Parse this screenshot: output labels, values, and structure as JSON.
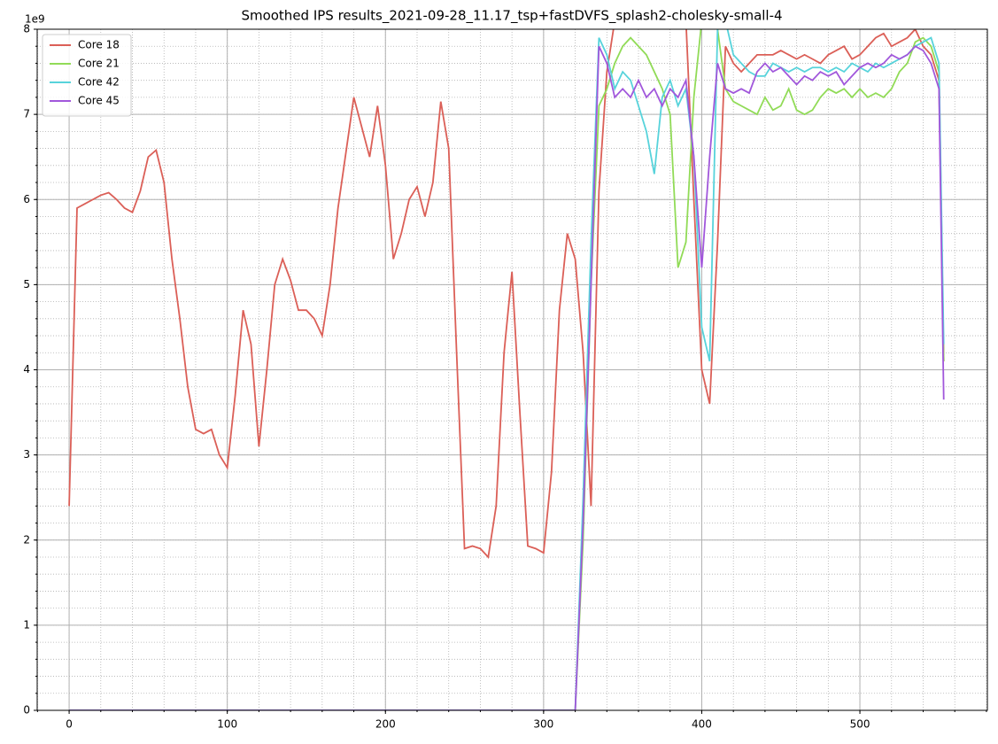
{
  "chart_data": {
    "type": "line",
    "title": "Smoothed IPS results_2021-09-28_11.17_tsp+fastDVFS_splash2-cholesky-small-4",
    "y_offset_label": "1e9",
    "x": [
      0,
      5,
      10,
      15,
      20,
      25,
      30,
      35,
      40,
      45,
      50,
      55,
      60,
      65,
      70,
      75,
      80,
      85,
      90,
      95,
      100,
      105,
      110,
      115,
      120,
      125,
      130,
      135,
      140,
      145,
      150,
      155,
      160,
      165,
      170,
      175,
      180,
      185,
      190,
      195,
      200,
      205,
      210,
      215,
      220,
      225,
      230,
      235,
      240,
      245,
      250,
      255,
      260,
      265,
      270,
      275,
      280,
      285,
      290,
      295,
      300,
      305,
      310,
      315,
      320,
      325,
      330,
      335,
      340,
      345,
      350,
      355,
      360,
      365,
      370,
      375,
      380,
      385,
      390,
      395,
      400,
      405,
      410,
      415,
      420,
      425,
      430,
      435,
      440,
      445,
      450,
      455,
      460,
      465,
      470,
      475,
      480,
      485,
      490,
      495,
      500,
      505,
      510,
      515,
      520,
      525,
      530,
      535,
      540,
      545,
      550,
      553
    ],
    "series": [
      {
        "name": "Core 18",
        "color": "#db5f57",
        "values": [
          2.4,
          5.9,
          5.95,
          6.0,
          6.05,
          6.08,
          6.0,
          5.9,
          5.85,
          6.1,
          6.5,
          6.58,
          6.2,
          5.3,
          4.6,
          3.8,
          3.3,
          3.25,
          3.3,
          3.0,
          2.85,
          3.7,
          4.7,
          4.3,
          3.1,
          4.0,
          5.0,
          5.3,
          5.05,
          4.7,
          4.7,
          4.6,
          4.4,
          5.0,
          5.9,
          6.55,
          7.2,
          6.85,
          6.5,
          7.1,
          6.4,
          5.3,
          5.6,
          6.0,
          6.15,
          5.8,
          6.2,
          7.15,
          6.6,
          4.2,
          1.9,
          1.93,
          1.9,
          1.8,
          2.4,
          4.2,
          5.15,
          3.5,
          1.93,
          1.9,
          1.85,
          2.8,
          4.7,
          5.6,
          5.3,
          4.2,
          2.4,
          6.1,
          7.5,
          8.1,
          8.1,
          8.1,
          8.1,
          8.1,
          8.1,
          8.1,
          8.1,
          8.1,
          8.1,
          6.0,
          4.0,
          3.6,
          5.5,
          7.8,
          7.6,
          7.5,
          7.6,
          7.7,
          7.7,
          7.7,
          7.75,
          7.7,
          7.65,
          7.7,
          7.65,
          7.6,
          7.7,
          7.75,
          7.8,
          7.65,
          7.7,
          7.8,
          7.9,
          7.95,
          7.8,
          7.85,
          7.9,
          8.0,
          7.8,
          7.7,
          7.4,
          4.1
        ]
      },
      {
        "name": "Core 21",
        "color": "#91db57",
        "values": [
          0,
          0,
          0,
          0,
          0,
          0,
          0,
          0,
          0,
          0,
          0,
          0,
          0,
          0,
          0,
          0,
          0,
          0,
          0,
          0,
          0,
          0,
          0,
          0,
          0,
          0,
          0,
          0,
          0,
          0,
          0,
          0,
          0,
          0,
          0,
          0,
          0,
          0,
          0,
          0,
          0,
          0,
          0,
          0,
          0,
          0,
          0,
          0,
          0,
          0,
          0,
          0,
          0,
          0,
          0,
          0,
          0,
          0,
          0,
          0,
          0,
          0,
          0,
          0,
          0,
          2.0,
          5.0,
          7.1,
          7.3,
          7.6,
          7.8,
          7.9,
          7.8,
          7.7,
          7.5,
          7.3,
          7.0,
          5.2,
          5.5,
          7.2,
          8.1,
          8.1,
          8.0,
          7.3,
          7.15,
          7.1,
          7.05,
          7.0,
          7.2,
          7.05,
          7.1,
          7.3,
          7.05,
          7.0,
          7.05,
          7.2,
          7.3,
          7.25,
          7.3,
          7.2,
          7.3,
          7.2,
          7.25,
          7.2,
          7.3,
          7.5,
          7.6,
          7.85,
          7.9,
          7.8,
          7.5,
          4.1
        ]
      },
      {
        "name": "Core 42",
        "color": "#57d3db",
        "values": [
          0,
          0,
          0,
          0,
          0,
          0,
          0,
          0,
          0,
          0,
          0,
          0,
          0,
          0,
          0,
          0,
          0,
          0,
          0,
          0,
          0,
          0,
          0,
          0,
          0,
          0,
          0,
          0,
          0,
          0,
          0,
          0,
          0,
          0,
          0,
          0,
          0,
          0,
          0,
          0,
          0,
          0,
          0,
          0,
          0,
          0,
          0,
          0,
          0,
          0,
          0,
          0,
          0,
          0,
          0,
          0,
          0,
          0,
          0,
          0,
          0,
          0,
          0,
          0,
          0,
          2.5,
          5.5,
          7.9,
          7.7,
          7.3,
          7.5,
          7.4,
          7.1,
          6.8,
          6.3,
          7.2,
          7.4,
          7.1,
          7.3,
          6.5,
          4.5,
          4.1,
          8.0,
          8.1,
          7.7,
          7.6,
          7.5,
          7.45,
          7.45,
          7.6,
          7.55,
          7.5,
          7.55,
          7.5,
          7.55,
          7.55,
          7.5,
          7.55,
          7.5,
          7.6,
          7.55,
          7.5,
          7.6,
          7.55,
          7.6,
          7.65,
          7.7,
          7.8,
          7.85,
          7.9,
          7.6,
          4.3
        ]
      },
      {
        "name": "Core 45",
        "color": "#a157db",
        "values": [
          0,
          0,
          0,
          0,
          0,
          0,
          0,
          0,
          0,
          0,
          0,
          0,
          0,
          0,
          0,
          0,
          0,
          0,
          0,
          0,
          0,
          0,
          0,
          0,
          0,
          0,
          0,
          0,
          0,
          0,
          0,
          0,
          0,
          0,
          0,
          0,
          0,
          0,
          0,
          0,
          0,
          0,
          0,
          0,
          0,
          0,
          0,
          0,
          0,
          0,
          0,
          0,
          0,
          0,
          0,
          0,
          0,
          0,
          0,
          0,
          0,
          0,
          0,
          0,
          0,
          2.2,
          5.0,
          7.8,
          7.6,
          7.2,
          7.3,
          7.2,
          7.4,
          7.2,
          7.3,
          7.1,
          7.3,
          7.2,
          7.4,
          6.5,
          5.2,
          6.5,
          7.6,
          7.3,
          7.25,
          7.3,
          7.25,
          7.5,
          7.6,
          7.5,
          7.55,
          7.45,
          7.35,
          7.45,
          7.4,
          7.5,
          7.45,
          7.5,
          7.35,
          7.45,
          7.55,
          7.6,
          7.55,
          7.6,
          7.7,
          7.65,
          7.7,
          7.8,
          7.75,
          7.6,
          7.3,
          3.65
        ]
      }
    ],
    "xlim": [
      -20.2,
      580.6
    ],
    "ylim": [
      0,
      8
    ],
    "xticks": [
      0,
      100,
      200,
      300,
      400,
      500
    ],
    "yticks": [
      0,
      1,
      2,
      3,
      4,
      5,
      6,
      7,
      8
    ],
    "x_minor_step": 20,
    "y_minor_step": 0.2,
    "grid": true,
    "minor_grid": true,
    "legend": "upper left"
  }
}
